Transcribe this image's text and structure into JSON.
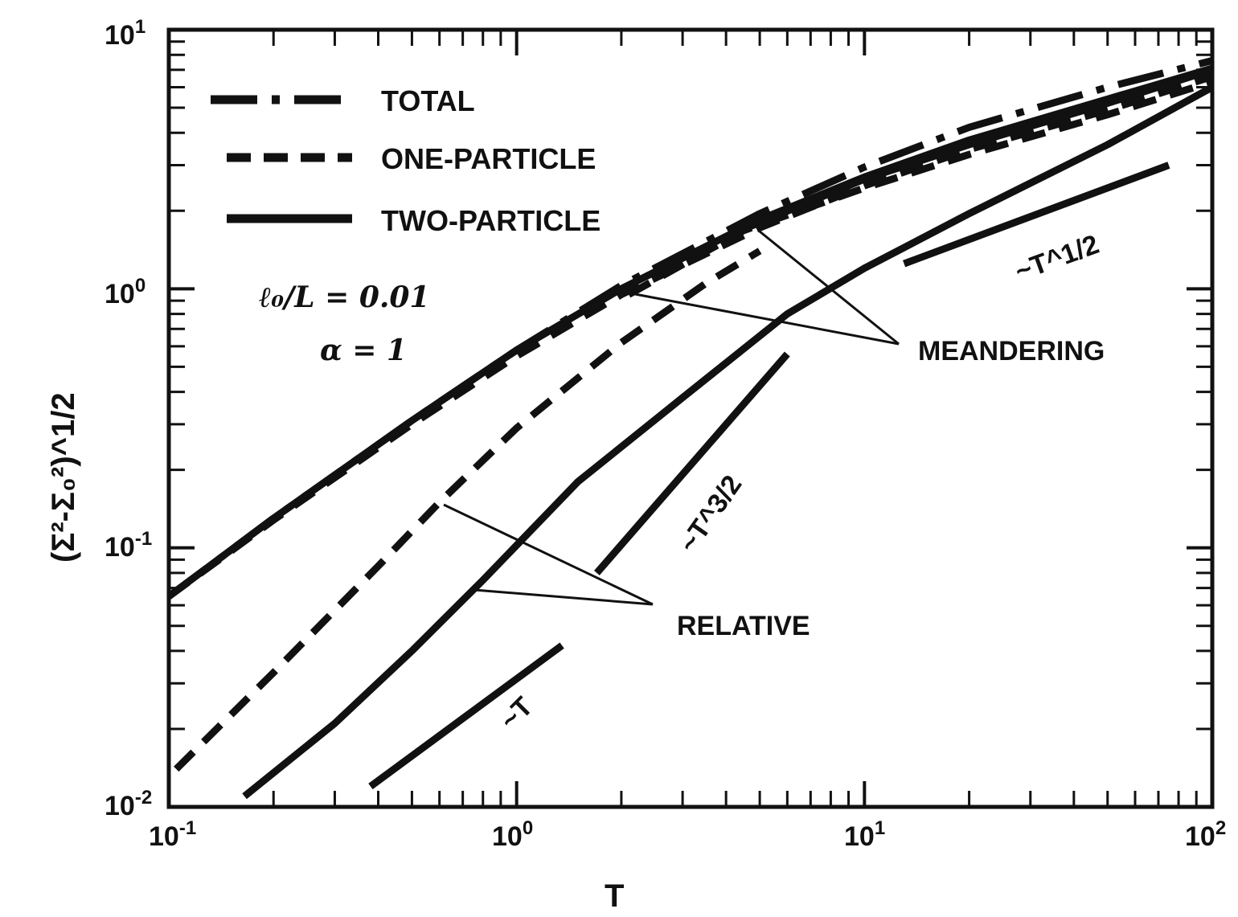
{
  "chart_data": {
    "type": "line",
    "xlabel": "T",
    "ylabel": "(Σ²-Σ₀²)^1/2",
    "x_scale": "log",
    "y_scale": "log",
    "xlim": [
      0.1,
      100
    ],
    "ylim": [
      0.01,
      10
    ],
    "x_ticks": [
      {
        "mant": "10",
        "exp": "-1"
      },
      {
        "mant": "10",
        "exp": "0"
      },
      {
        "mant": "10",
        "exp": "1"
      },
      {
        "mant": "10",
        "exp": "2"
      }
    ],
    "y_ticks": [
      {
        "mant": "10",
        "exp": "-2"
      },
      {
        "mant": "10",
        "exp": "-1"
      },
      {
        "mant": "10",
        "exp": "0"
      },
      {
        "mant": "10",
        "exp": "1"
      }
    ],
    "legend": {
      "position": "top-left",
      "entries": [
        {
          "label": "TOTAL",
          "style": "dash-dot"
        },
        {
          "label": "ONE-PARTICLE",
          "style": "dashed"
        },
        {
          "label": "TWO-PARTICLE",
          "style": "solid"
        }
      ]
    },
    "parameters": [
      "ℓ₀/L = 0.01",
      "α = 1"
    ],
    "annotations": [
      "MEANDERING",
      "RELATIVE"
    ],
    "slope_labels": [
      "~T^1/2",
      "~T^3/2",
      "~T"
    ],
    "series": [
      {
        "style": "dash-dot",
        "x": [
          0.1,
          0.2,
          0.5,
          1,
          2,
          5,
          10,
          20,
          50,
          100
        ],
        "y": [
          0.065,
          0.13,
          0.31,
          0.58,
          1.03,
          1.95,
          2.95,
          4.2,
          6.0,
          7.6
        ]
      },
      {
        "style": "dashed",
        "x": [
          0.1,
          0.2,
          0.5,
          1,
          2,
          5,
          10,
          20,
          50,
          100
        ],
        "y": [
          0.065,
          0.128,
          0.3,
          0.55,
          0.95,
          1.72,
          2.5,
          3.45,
          4.9,
          6.6
        ]
      },
      {
        "style": "solid",
        "x": [
          0.1,
          0.2,
          0.5,
          1,
          2,
          5,
          10,
          20,
          50,
          100
        ],
        "y": [
          0.065,
          0.13,
          0.31,
          0.58,
          1.0,
          1.85,
          2.7,
          3.75,
          5.4,
          7.1
        ]
      },
      {
        "style": "dashed",
        "x": [
          2.1,
          4.5,
          10,
          20,
          50,
          100
        ],
        "y": [
          0.95,
          1.68,
          2.45,
          3.3,
          4.7,
          6.3
        ]
      },
      {
        "style": "solid",
        "x": [
          4.6,
          10,
          20,
          50,
          100
        ],
        "y": [
          1.72,
          2.65,
          3.6,
          5.2,
          7.0
        ]
      },
      {
        "style": "dashed",
        "x": [
          0.105,
          0.2,
          0.4,
          0.6,
          1,
          2,
          3.5,
          5
        ],
        "y": [
          0.014,
          0.033,
          0.085,
          0.15,
          0.29,
          0.62,
          1.05,
          1.4
        ]
      },
      {
        "style": "solid",
        "x": [
          0.165,
          0.3,
          0.5,
          0.8,
          1.5,
          3,
          6,
          10,
          20,
          50,
          100
        ],
        "y": [
          0.011,
          0.021,
          0.04,
          0.075,
          0.18,
          0.38,
          0.8,
          1.2,
          1.95,
          3.6,
          6.0
        ]
      },
      {
        "style": "solid",
        "x": [
          13,
          75
        ],
        "y": [
          1.25,
          3.0
        ]
      },
      {
        "style": "solid",
        "x": [
          1.7,
          6.0
        ],
        "y": [
          0.08,
          0.56
        ]
      },
      {
        "style": "solid",
        "x": [
          0.38,
          1.35
        ],
        "y": [
          0.012,
          0.042
        ]
      }
    ]
  }
}
